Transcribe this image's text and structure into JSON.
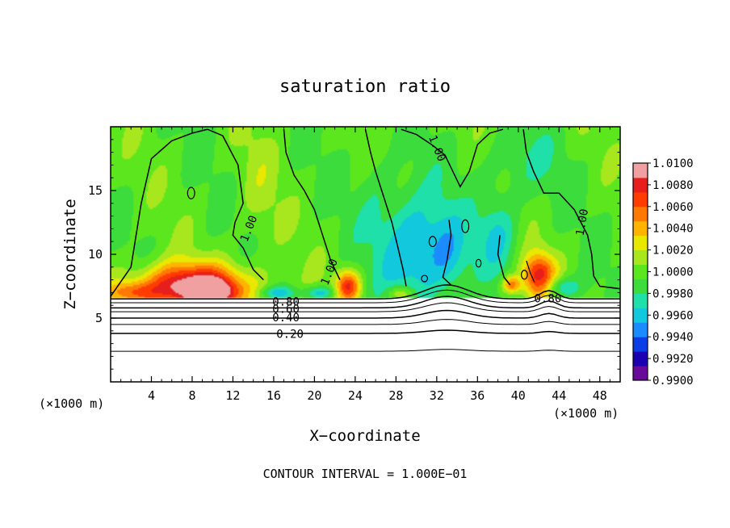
{
  "chart_data": {
    "type": "heatmap",
    "title": "saturation ratio",
    "xlabel": "X−coordinate",
    "ylabel": "Z−coordinate",
    "x_unit_left": "(×1000 m)",
    "x_unit_right": "(×1000 m)",
    "xlim": [
      0,
      50
    ],
    "ylim": [
      0,
      20
    ],
    "x_ticks": [
      4,
      8,
      12,
      16,
      20,
      24,
      28,
      32,
      36,
      40,
      44,
      48
    ],
    "y_ticks": [
      5,
      10,
      15
    ],
    "footer": "CONTOUR INTERVAL = 1.000E−01",
    "colorbar": {
      "min": 0.99,
      "max": 1.01,
      "labels": [
        "1.0100",
        "1.0080",
        "1.0060",
        "1.0040",
        "1.0020",
        "1.0000",
        "0.9980",
        "0.9960",
        "0.9940",
        "0.9920",
        "0.9900"
      ],
      "colors": [
        "#6a0a9a",
        "#1a00b0",
        "#0a3ee6",
        "#1a8cff",
        "#12c8dc",
        "#1ee0a8",
        "#3cdc3c",
        "#5ce61e",
        "#a8e61e",
        "#e8e800",
        "#ffb400",
        "#ff7800",
        "#ff3c00",
        "#e61e1e",
        "#f0a0a0"
      ]
    },
    "contour_labels": [
      {
        "text": "1.00",
        "x": 13.6,
        "z": 12.0,
        "rot": -68
      },
      {
        "text": "1.00",
        "x": 21.5,
        "z": 8.6,
        "rot": -68
      },
      {
        "text": "1.00",
        "x": 32.0,
        "z": 18.3,
        "rot": 68
      },
      {
        "text": "1.00",
        "x": 46.3,
        "z": 12.5,
        "rot": -80
      },
      {
        "text": "0.80",
        "x": 17.2,
        "z": 6.25,
        "rot": 0
      },
      {
        "text": "0.60",
        "x": 17.2,
        "z": 5.65,
        "rot": 0
      },
      {
        "text": "0.40",
        "x": 17.2,
        "z": 5.0,
        "rot": 0
      },
      {
        "text": "0.20",
        "x": 17.6,
        "z": 3.7,
        "rot": 0
      },
      {
        "text": "0.80",
        "x": 42.9,
        "z": 6.5,
        "rot": 0
      }
    ],
    "field_anomalies": [
      {
        "x": 8.0,
        "z": 7.4,
        "sx": 5.5,
        "sz": 1.8,
        "amp": 0.0105
      },
      {
        "x": 10.0,
        "z": 7.0,
        "sx": 2.0,
        "sz": 0.9,
        "amp": 0.006
      },
      {
        "x": 2.0,
        "z": 7.0,
        "sx": 2.5,
        "sz": 0.8,
        "amp": 0.004
      },
      {
        "x": 23.3,
        "z": 7.5,
        "sx": 1.2,
        "sz": 1.2,
        "amp": 0.0075
      },
      {
        "x": 42.0,
        "z": 8.2,
        "sx": 1.6,
        "sz": 1.8,
        "amp": 0.0085
      },
      {
        "x": 39.3,
        "z": 7.6,
        "sx": 0.9,
        "sz": 0.7,
        "amp": 0.006
      },
      {
        "x": 28.5,
        "z": 6.9,
        "sx": 1.4,
        "sz": 0.6,
        "amp": 0.004
      },
      {
        "x": 29.5,
        "z": 10.5,
        "sx": 3.0,
        "sz": 4.5,
        "amp": -0.0045
      },
      {
        "x": 33.0,
        "z": 10.0,
        "sx": 2.2,
        "sz": 3.5,
        "amp": -0.0035
      },
      {
        "x": 38.0,
        "z": 11.5,
        "sx": 2.0,
        "sz": 3.0,
        "amp": -0.003
      },
      {
        "x": 44.0,
        "z": 7.4,
        "sx": 2.0,
        "sz": 0.9,
        "amp": -0.004
      },
      {
        "x": 16.5,
        "z": 7.0,
        "sx": 1.8,
        "sz": 0.5,
        "amp": -0.0035
      },
      {
        "x": 20.5,
        "z": 7.0,
        "sx": 1.5,
        "sz": 0.5,
        "amp": -0.004
      },
      {
        "x": 14.5,
        "z": 15.0,
        "sx": 2.0,
        "sz": 5.0,
        "amp": 0.0012
      },
      {
        "x": 26.0,
        "z": 15.0,
        "sx": 2.0,
        "sz": 5.0,
        "amp": -0.0012
      },
      {
        "x": 40.0,
        "z": 17.0,
        "sx": 4.0,
        "sz": 3.0,
        "amp": -0.0016
      }
    ]
  }
}
